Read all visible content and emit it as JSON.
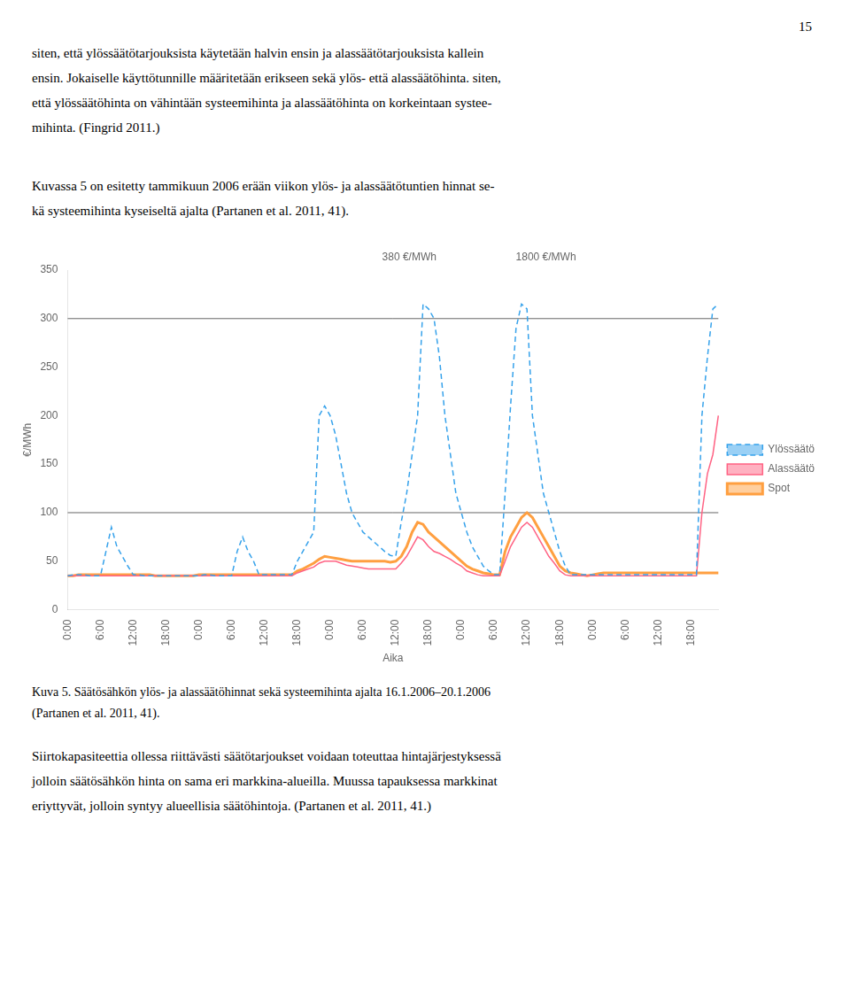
{
  "page_text": {
    "page_number": "15",
    "paragraphs_before": [
      [
        "siten, että ylössäätötarjouksista käytetään halvin ensin ja alassäätötarjouksista kallein",
        "ensin. Jokaiselle käyttötunnille määritetään erikseen sekä ylös- että alassäätöhinta. siten,",
        "että ylössäätöhinta on vähintään systeemihinta ja alassäätöhinta on korkeintaan systee-",
        "mihinta. (Fingrid 2011.)"
      ],
      [
        "Kuvassa 5 on esitetty tammikuun 2006 erään viikon ylös- ja alassäätötuntien hinnat se-",
        "kä systeemihinta kyseiseltä ajalta (Partanen et al. 2011, 41)."
      ]
    ],
    "caption": [
      "Kuva 5. Säätösähkön ylös- ja alassäätöhinnat sekä systeemihinta ajalta 16.1.2006–20.1.2006",
      "(Partanen et al. 2011, 41)."
    ],
    "paragraphs_after": [
      [
        "Siirtokapasiteettia ollessa riittävästi säätötarjoukset voidaan toteuttaa hintajärjestyksessä",
        "jolloin säätösähkön hinta on sama eri markkina-alueilla. Muussa tapauksessa markkinat",
        "eriyttyvät, jolloin syntyy alueellisia säätöhintoja. (Partanen et al. 2011, 41.)"
      ]
    ]
  },
  "chart_data": {
    "type": "line",
    "xlabel": "Aika",
    "ylabel": "€/MWh",
    "annotations": [
      "380 €/MWh",
      "1800 €/MWh"
    ],
    "categories": [
      "0:00",
      null,
      null,
      null,
      null,
      null,
      "6:00",
      null,
      null,
      null,
      null,
      null,
      "12:00",
      null,
      null,
      null,
      null,
      null,
      "18:00",
      null,
      null,
      null,
      null,
      null,
      "0:00",
      null,
      null,
      null,
      null,
      null,
      "6:00",
      null,
      null,
      null,
      null,
      null,
      "12:00",
      null,
      null,
      null,
      null,
      null,
      "18:00",
      null,
      null,
      null,
      null,
      null,
      "0:00",
      null,
      null,
      null,
      null,
      null,
      "6:00",
      null,
      null,
      null,
      null,
      null,
      "12:00",
      null,
      null,
      null,
      null,
      null,
      "18:00",
      null,
      null,
      null,
      null,
      null,
      "0:00",
      null,
      null,
      null,
      null,
      null,
      "6:00",
      null,
      null,
      null,
      null,
      null,
      "12:00",
      null,
      null,
      null,
      null,
      null,
      "18:00",
      null,
      null,
      null,
      null,
      null,
      "0:00",
      null,
      null,
      null,
      null,
      null,
      "6:00",
      null,
      null,
      null,
      null,
      null,
      "12:00",
      null,
      null,
      null,
      null,
      null,
      "18:00",
      null,
      null,
      null,
      null,
      null
    ],
    "series": [
      {
        "name": "Ylössäätö",
        "line_style": "dashed",
        "values": [
          35,
          36,
          36,
          36,
          35,
          35,
          35,
          60,
          85,
          65,
          55,
          45,
          36,
          36,
          35,
          35,
          35,
          35,
          35,
          35,
          35,
          35,
          35,
          35,
          35,
          36,
          36,
          35,
          35,
          35,
          35,
          60,
          75,
          60,
          50,
          36,
          36,
          36,
          36,
          36,
          36,
          36,
          50,
          60,
          70,
          80,
          200,
          210,
          200,
          180,
          150,
          120,
          100,
          90,
          80,
          75,
          70,
          65,
          60,
          56,
          55,
          90,
          120,
          160,
          200,
          315,
          310,
          300,
          260,
          200,
          160,
          120,
          100,
          80,
          65,
          55,
          45,
          40,
          36,
          36,
          120,
          210,
          290,
          315,
          310,
          200,
          160,
          120,
          100,
          80,
          60,
          45,
          36,
          36,
          36,
          36,
          36,
          36,
          36,
          36,
          36,
          36,
          36,
          36,
          36,
          36,
          36,
          36,
          36,
          36,
          36,
          36,
          36,
          36,
          36,
          36,
          200,
          260,
          310,
          315
        ]
      },
      {
        "name": "Alassäätö",
        "line_style": "solid",
        "values": [
          35,
          35,
          35,
          35,
          35,
          35,
          35,
          35,
          35,
          35,
          35,
          35,
          35,
          35,
          35,
          35,
          35,
          35,
          35,
          35,
          35,
          35,
          35,
          35,
          35,
          35,
          35,
          35,
          35,
          35,
          35,
          35,
          35,
          35,
          35,
          35,
          35,
          35,
          35,
          35,
          35,
          35,
          38,
          40,
          42,
          44,
          48,
          50,
          50,
          50,
          48,
          46,
          45,
          44,
          43,
          42,
          42,
          42,
          42,
          42,
          42,
          48,
          55,
          65,
          75,
          72,
          65,
          60,
          58,
          55,
          52,
          48,
          45,
          40,
          38,
          36,
          35,
          35,
          35,
          35,
          50,
          65,
          75,
          85,
          90,
          85,
          75,
          65,
          55,
          48,
          40,
          36,
          35,
          35,
          35,
          35,
          35,
          35,
          35,
          35,
          35,
          35,
          35,
          35,
          35,
          35,
          35,
          35,
          35,
          35,
          35,
          35,
          35,
          35,
          35,
          35,
          100,
          140,
          160,
          200
        ]
      },
      {
        "name": "Spot",
        "line_style": "solid",
        "values": [
          35,
          35,
          36,
          36,
          36,
          36,
          36,
          36,
          36,
          36,
          36,
          36,
          36,
          36,
          36,
          36,
          35,
          35,
          35,
          35,
          35,
          35,
          35,
          35,
          36,
          36,
          36,
          36,
          36,
          36,
          36,
          36,
          36,
          36,
          36,
          36,
          36,
          36,
          36,
          36,
          36,
          36,
          40,
          42,
          45,
          48,
          52,
          55,
          54,
          53,
          52,
          51,
          50,
          50,
          50,
          50,
          50,
          50,
          50,
          49,
          50,
          55,
          65,
          80,
          90,
          88,
          80,
          75,
          70,
          65,
          60,
          55,
          50,
          45,
          42,
          40,
          38,
          37,
          36,
          36,
          60,
          75,
          85,
          95,
          100,
          95,
          85,
          75,
          65,
          55,
          45,
          40,
          38,
          37,
          36,
          35,
          36,
          37,
          38,
          38,
          38,
          38,
          38,
          38,
          38,
          38,
          38,
          38,
          38,
          38,
          38,
          38,
          38,
          38,
          38,
          38,
          38,
          38,
          38,
          38
        ]
      }
    ],
    "ylim": [
      0,
      350
    ],
    "yticks": [
      0,
      50,
      100,
      150,
      200,
      250,
      300,
      350
    ],
    "hlines": [
      100,
      300
    ],
    "grid": false,
    "legend": "right"
  }
}
